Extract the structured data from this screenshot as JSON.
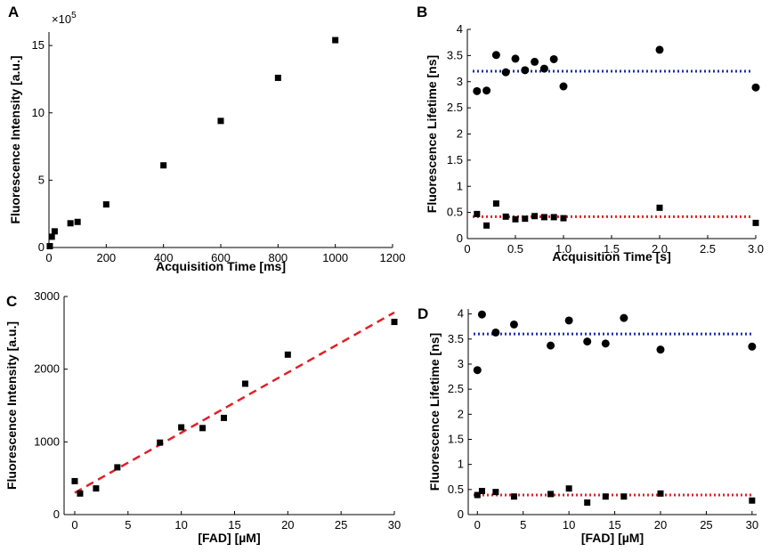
{
  "chart_data": [
    {
      "panel": "A",
      "type": "scatter",
      "title": "",
      "xlabel": "Acquisition Time [ms]",
      "ylabel": "Fluorescence Intensity [a.u.]",
      "y_multiplier": "×10",
      "y_multiplier_exp": "5",
      "xlim": [
        0,
        1200
      ],
      "ylim": [
        0,
        16
      ],
      "xticks": [
        0,
        200,
        400,
        600,
        800,
        1000,
        1200
      ],
      "yticks": [
        0,
        5,
        10,
        15
      ],
      "grid": false,
      "series": [
        {
          "name": "intensity",
          "marker": "square",
          "color": "#000000",
          "x": [
            3,
            10,
            20,
            75,
            100,
            200,
            400,
            600,
            800,
            1000
          ],
          "y": [
            0.1,
            0.8,
            1.2,
            1.8,
            1.9,
            3.2,
            6.1,
            9.4,
            12.6,
            15.4
          ]
        }
      ]
    },
    {
      "panel": "B",
      "type": "scatter",
      "title": "",
      "xlabel": "Acquisition Time [s]",
      "ylabel": "Fluorescence Lifetime [ns]",
      "xlim": [
        0,
        3
      ],
      "ylim": [
        0,
        4
      ],
      "xticks": [
        0,
        0.5,
        1,
        1.5,
        2,
        2.5,
        3
      ],
      "xtick_labels": [
        "0",
        "0.5",
        "1.0",
        "1.5",
        "2.0",
        "2.5",
        "3.0"
      ],
      "yticks": [
        0,
        0.5,
        1,
        1.5,
        2,
        2.5,
        3,
        3.5,
        4
      ],
      "grid": false,
      "series": [
        {
          "name": "long lifetime",
          "marker": "circle",
          "color": "#000000",
          "x": [
            0.1,
            0.2,
            0.3,
            0.4,
            0.5,
            0.6,
            0.7,
            0.8,
            0.9,
            1.0,
            2.0,
            3.0
          ],
          "y": [
            2.82,
            2.83,
            3.51,
            3.18,
            3.44,
            3.22,
            3.38,
            3.25,
            3.43,
            2.91,
            3.61,
            2.89
          ]
        },
        {
          "name": "short lifetime",
          "marker": "square",
          "color": "#000000",
          "x": [
            0.1,
            0.2,
            0.3,
            0.4,
            0.5,
            0.6,
            0.7,
            0.8,
            0.9,
            1.0,
            2.0,
            3.0
          ],
          "y": [
            0.47,
            0.25,
            0.67,
            0.42,
            0.37,
            0.38,
            0.43,
            0.41,
            0.41,
            0.39,
            0.59,
            0.3
          ]
        }
      ],
      "reference_lines": [
        {
          "name": "mean long",
          "y": 3.2,
          "color": "#1f2fb4",
          "style": "dotted"
        },
        {
          "name": "mean short",
          "y": 0.42,
          "color": "#e0202a",
          "style": "dotted"
        }
      ]
    },
    {
      "panel": "C",
      "type": "scatter",
      "title": "",
      "xlabel": "[FAD] [µM]",
      "ylabel": "Fluorescence Intensity [a.u.]",
      "xlim": [
        -1,
        30
      ],
      "ylim": [
        0,
        3000
      ],
      "xticks": [
        0,
        5,
        10,
        15,
        20,
        25,
        30
      ],
      "yticks": [
        0,
        1000,
        2000,
        3000
      ],
      "grid": false,
      "series": [
        {
          "name": "intensity",
          "marker": "square",
          "color": "#000000",
          "x": [
            0,
            0.5,
            2,
            4,
            8,
            10,
            12,
            14,
            16,
            20,
            30
          ],
          "y": [
            460,
            290,
            360,
            650,
            990,
            1200,
            1190,
            1330,
            1800,
            2200,
            2650
          ]
        }
      ],
      "fit_line": {
        "name": "linear fit",
        "x": [
          0,
          30
        ],
        "y": [
          300,
          2780
        ],
        "color": "#e0202a",
        "style": "dashed"
      }
    },
    {
      "panel": "D",
      "type": "scatter",
      "title": "",
      "xlabel": "[FAD] [µM]",
      "ylabel": "Fluorescence Lifetime [ns]",
      "xlim": [
        -1,
        30.5
      ],
      "ylim": [
        0,
        4.1
      ],
      "xticks": [
        0,
        5,
        10,
        15,
        20,
        25,
        30
      ],
      "yticks": [
        0,
        0.5,
        1,
        1.5,
        2,
        2.5,
        3,
        3.5,
        4
      ],
      "grid": false,
      "series": [
        {
          "name": "long lifetime",
          "marker": "circle",
          "color": "#000000",
          "x": [
            0,
            0.5,
            2,
            4,
            8,
            10,
            12,
            14,
            16,
            20,
            30
          ],
          "y": [
            2.88,
            3.99,
            3.63,
            3.79,
            3.37,
            3.87,
            3.45,
            3.41,
            3.92,
            3.29,
            3.35
          ]
        },
        {
          "name": "short lifetime",
          "marker": "square",
          "color": "#000000",
          "x": [
            0,
            0.5,
            2,
            4,
            8,
            10,
            12,
            14,
            16,
            20,
            30
          ],
          "y": [
            0.39,
            0.47,
            0.45,
            0.36,
            0.41,
            0.52,
            0.24,
            0.36,
            0.36,
            0.42,
            0.28
          ]
        }
      ],
      "reference_lines": [
        {
          "name": "mean long",
          "y": 3.6,
          "color": "#1f2fb4",
          "style": "dotted"
        },
        {
          "name": "mean short",
          "y": 0.39,
          "color": "#e0202a",
          "style": "dotted"
        }
      ]
    }
  ]
}
